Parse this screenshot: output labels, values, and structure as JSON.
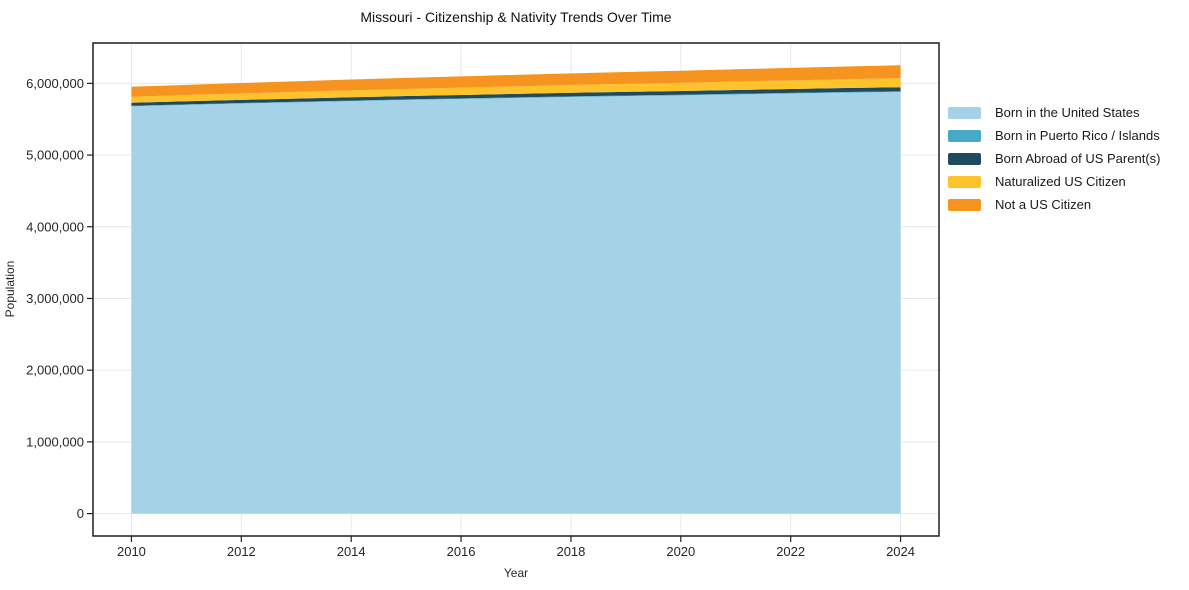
{
  "chart_data": {
    "type": "area",
    "stacked": true,
    "title": "Missouri - Citizenship & Nativity Trends Over Time",
    "xlabel": "Year",
    "ylabel": "Population",
    "x": [
      2010,
      2011,
      2012,
      2013,
      2014,
      2015,
      2016,
      2017,
      2018,
      2019,
      2020,
      2021,
      2022,
      2023,
      2024
    ],
    "series": [
      {
        "name": "Born in the United States",
        "color": "#a6d2e7",
        "values": [
          5680000,
          5700000,
          5718000,
          5735000,
          5752000,
          5768000,
          5782000,
          5796000,
          5810000,
          5822000,
          5832000,
          5845000,
          5858000,
          5870000,
          5880000
        ]
      },
      {
        "name": "Born in Puerto Rico / Islands",
        "color": "#46aac6",
        "values": [
          7000,
          7200,
          7400,
          7500,
          7700,
          7800,
          8000,
          8200,
          8400,
          8500,
          8700,
          8900,
          9200,
          9500,
          9800
        ]
      },
      {
        "name": "Born Abroad of US Parent(s)",
        "color": "#1f4a5f",
        "values": [
          42000,
          43000,
          44000,
          45000,
          46000,
          47000,
          48000,
          49000,
          50000,
          51000,
          52000,
          53000,
          54000,
          55000,
          56000
        ]
      },
      {
        "name": "Naturalized US Citizen",
        "color": "#fcc32d",
        "values": [
          84000,
          87000,
          90000,
          93000,
          96000,
          99000,
          102000,
          105000,
          108000,
          111000,
          114000,
          117000,
          120000,
          123000,
          126000
        ]
      },
      {
        "name": "Not a US Citizen",
        "color": "#f6941f",
        "values": [
          139000,
          142000,
          145000,
          148000,
          151000,
          154000,
          157000,
          160000,
          163000,
          166000,
          169000,
          172000,
          175000,
          178000,
          181000
        ]
      }
    ],
    "xticks": [
      2010,
      2012,
      2014,
      2016,
      2018,
      2020,
      2022,
      2024
    ],
    "yticks": [
      0,
      1000000,
      2000000,
      3000000,
      4000000,
      5000000,
      6000000
    ],
    "xlim": [
      2009.3,
      2024.7
    ],
    "ylim": [
      -312500,
      6562500
    ],
    "grid": true,
    "legend_position": "right",
    "colors": {
      "grid": "#e8e8e8",
      "spine": "#1f1f1f",
      "tick_text": "#262626",
      "background": "#ffffff"
    }
  }
}
